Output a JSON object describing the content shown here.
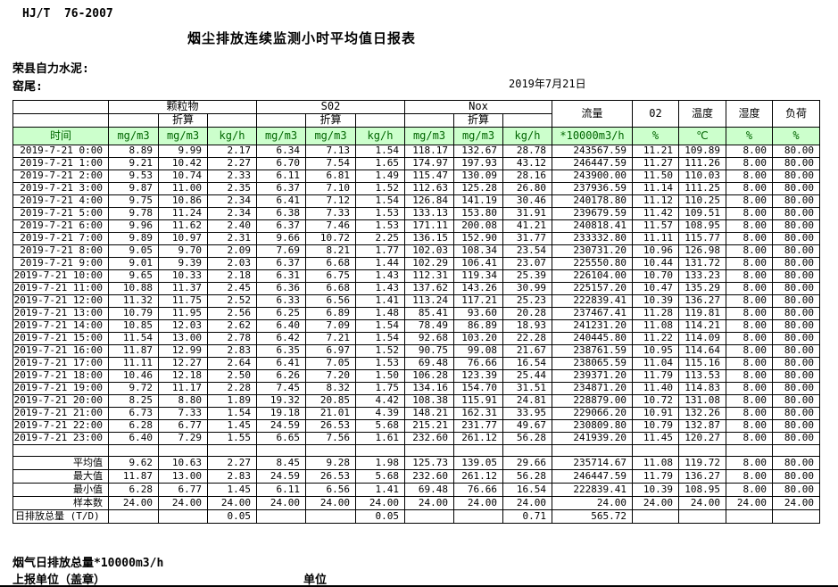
{
  "doc": {
    "standard": "HJ/T  76-2007",
    "title": "烟尘排放连续监测小时平均值日报表",
    "company": "荣县自力水泥:",
    "point": "窑尾:",
    "date": "2019年7月21日"
  },
  "table": {
    "groups": {
      "pm": "颗粒物",
      "so2": "S02",
      "nox": "Nox",
      "converted": "折算",
      "flow": "流量",
      "o2": "02",
      "temp": "温度",
      "humidity": "湿度",
      "load": "负荷"
    },
    "units": {
      "time_label": "时间",
      "mg": "mg/m3",
      "kg": "kg/h",
      "flow": "*10000m3/h",
      "percent": "%",
      "celsius": "℃"
    },
    "rows": [
      [
        "2019-7-21  0:00",
        "8.89",
        "9.99",
        "2.17",
        "6.34",
        "7.13",
        "1.54",
        "118.17",
        "132.67",
        "28.78",
        "243567.59",
        "11.21",
        "109.89",
        "8.00",
        "80.00"
      ],
      [
        "2019-7-21  1:00",
        "9.21",
        "10.42",
        "2.27",
        "6.70",
        "7.54",
        "1.65",
        "174.97",
        "197.93",
        "43.12",
        "246447.59",
        "11.27",
        "111.26",
        "8.00",
        "80.00"
      ],
      [
        "2019-7-21  2:00",
        "9.53",
        "10.74",
        "2.33",
        "6.11",
        "6.81",
        "1.49",
        "115.47",
        "130.09",
        "28.16",
        "243900.00",
        "11.50",
        "110.03",
        "8.00",
        "80.00"
      ],
      [
        "2019-7-21  3:00",
        "9.87",
        "11.00",
        "2.35",
        "6.37",
        "7.10",
        "1.52",
        "112.63",
        "125.28",
        "26.80",
        "237936.59",
        "11.14",
        "111.25",
        "8.00",
        "80.00"
      ],
      [
        "2019-7-21  4:00",
        "9.75",
        "10.86",
        "2.34",
        "6.41",
        "7.12",
        "1.54",
        "126.84",
        "141.19",
        "30.46",
        "240178.80",
        "11.12",
        "110.25",
        "8.00",
        "80.00"
      ],
      [
        "2019-7-21  5:00",
        "9.78",
        "11.24",
        "2.34",
        "6.38",
        "7.33",
        "1.53",
        "133.13",
        "153.80",
        "31.91",
        "239679.59",
        "11.42",
        "109.51",
        "8.00",
        "80.00"
      ],
      [
        "2019-7-21  6:00",
        "9.96",
        "11.62",
        "2.40",
        "6.37",
        "7.46",
        "1.53",
        "171.11",
        "200.08",
        "41.21",
        "240818.41",
        "11.57",
        "108.95",
        "8.00",
        "80.00"
      ],
      [
        "2019-7-21  7:00",
        "9.89",
        "10.97",
        "2.31",
        "9.66",
        "10.72",
        "2.25",
        "136.15",
        "152.90",
        "31.77",
        "233332.80",
        "11.11",
        "115.77",
        "8.00",
        "80.00"
      ],
      [
        "2019-7-21  8:00",
        "9.05",
        "9.70",
        "2.09",
        "7.69",
        "8.21",
        "1.77",
        "102.03",
        "108.34",
        "23.54",
        "230731.20",
        "10.96",
        "126.98",
        "8.00",
        "80.00"
      ],
      [
        "2019-7-21  9:00",
        "9.01",
        "9.39",
        "2.03",
        "6.37",
        "6.68",
        "1.44",
        "102.29",
        "106.41",
        "23.07",
        "225550.80",
        "10.44",
        "131.72",
        "8.00",
        "80.00"
      ],
      [
        "2019-7-21 10:00",
        "9.65",
        "10.33",
        "2.18",
        "6.31",
        "6.75",
        "1.43",
        "112.31",
        "119.34",
        "25.39",
        "226104.00",
        "10.70",
        "133.23",
        "8.00",
        "80.00"
      ],
      [
        "2019-7-21 11:00",
        "10.88",
        "11.37",
        "2.45",
        "6.36",
        "6.68",
        "1.43",
        "137.62",
        "143.26",
        "30.99",
        "225157.20",
        "10.47",
        "135.29",
        "8.00",
        "80.00"
      ],
      [
        "2019-7-21 12:00",
        "11.32",
        "11.75",
        "2.52",
        "6.33",
        "6.56",
        "1.41",
        "113.24",
        "117.21",
        "25.23",
        "222839.41",
        "10.39",
        "136.27",
        "8.00",
        "80.00"
      ],
      [
        "2019-7-21 13:00",
        "10.79",
        "11.95",
        "2.56",
        "6.25",
        "6.89",
        "1.48",
        "85.41",
        "93.60",
        "20.28",
        "237467.41",
        "11.28",
        "119.81",
        "8.00",
        "80.00"
      ],
      [
        "2019-7-21 14:00",
        "10.85",
        "12.03",
        "2.62",
        "6.40",
        "7.09",
        "1.54",
        "78.49",
        "86.89",
        "18.93",
        "241231.20",
        "11.08",
        "114.21",
        "8.00",
        "80.00"
      ],
      [
        "2019-7-21 15:00",
        "11.54",
        "13.00",
        "2.78",
        "6.42",
        "7.21",
        "1.54",
        "92.68",
        "103.20",
        "22.28",
        "240445.80",
        "11.22",
        "114.09",
        "8.00",
        "80.00"
      ],
      [
        "2019-7-21 16:00",
        "11.87",
        "12.99",
        "2.83",
        "6.35",
        "6.97",
        "1.52",
        "90.75",
        "99.08",
        "21.67",
        "238761.59",
        "10.95",
        "114.64",
        "8.00",
        "80.00"
      ],
      [
        "2019-7-21 17:00",
        "11.11",
        "12.27",
        "2.64",
        "6.41",
        "7.05",
        "1.53",
        "69.48",
        "76.66",
        "16.54",
        "238065.59",
        "11.04",
        "115.16",
        "8.00",
        "80.00"
      ],
      [
        "2019-7-21 18:00",
        "10.46",
        "12.18",
        "2.50",
        "6.26",
        "7.20",
        "1.50",
        "106.28",
        "123.39",
        "25.44",
        "239371.20",
        "11.79",
        "113.53",
        "8.00",
        "80.00"
      ],
      [
        "2019-7-21 19:00",
        "9.72",
        "11.17",
        "2.28",
        "7.45",
        "8.32",
        "1.75",
        "134.16",
        "154.70",
        "31.51",
        "234871.20",
        "11.40",
        "114.83",
        "8.00",
        "80.00"
      ],
      [
        "2019-7-21 20:00",
        "8.25",
        "8.80",
        "1.89",
        "19.32",
        "20.85",
        "4.42",
        "108.38",
        "115.91",
        "24.81",
        "228879.00",
        "10.72",
        "131.08",
        "8.00",
        "80.00"
      ],
      [
        "2019-7-21 21:00",
        "6.73",
        "7.33",
        "1.54",
        "19.18",
        "21.01",
        "4.39",
        "148.21",
        "162.31",
        "33.95",
        "229066.20",
        "10.91",
        "132.26",
        "8.00",
        "80.00"
      ],
      [
        "2019-7-21 22:00",
        "6.28",
        "6.77",
        "1.45",
        "24.59",
        "26.53",
        "5.68",
        "215.21",
        "231.77",
        "49.67",
        "230809.80",
        "10.79",
        "132.87",
        "8.00",
        "80.00"
      ],
      [
        "2019-7-21 23:00",
        "6.40",
        "7.29",
        "1.55",
        "6.65",
        "7.56",
        "1.61",
        "232.60",
        "261.12",
        "56.28",
        "241939.20",
        "11.45",
        "120.27",
        "8.00",
        "80.00"
      ]
    ],
    "summary": [
      {
        "label": "平均值",
        "values": [
          "9.62",
          "10.63",
          "2.27",
          "8.45",
          "9.28",
          "1.98",
          "125.73",
          "139.05",
          "29.66",
          "235714.67",
          "11.08",
          "119.72",
          "8.00",
          "80.00"
        ]
      },
      {
        "label": "最大值",
        "values": [
          "11.87",
          "13.00",
          "2.83",
          "24.59",
          "26.53",
          "5.68",
          "232.60",
          "261.12",
          "56.28",
          "246447.59",
          "11.79",
          "136.27",
          "8.00",
          "80.00"
        ]
      },
      {
        "label": "最小值",
        "values": [
          "6.28",
          "6.77",
          "1.45",
          "6.11",
          "6.56",
          "1.41",
          "69.48",
          "76.66",
          "16.54",
          "222839.41",
          "10.39",
          "108.95",
          "8.00",
          "80.00"
        ]
      },
      {
        "label": "样本数",
        "values": [
          "24.00",
          "24.00",
          "24.00",
          "24.00",
          "24.00",
          "24.00",
          "24.00",
          "24.00",
          "24.00",
          "24.00",
          "24.00",
          "24.00",
          "24.00",
          "24.00"
        ]
      },
      {
        "label": "日排放总量 (T/D)",
        "align": "left",
        "values": [
          "",
          "",
          "0.05",
          "",
          "",
          "0.05",
          "",
          "",
          "0.71",
          "565.72",
          "",
          "",
          "",
          ""
        ]
      }
    ]
  },
  "footer": {
    "flow_note": "烟气日排放总量*10000m3/h",
    "report_unit": "上报单位（盖章）",
    "unit": "单位"
  },
  "colors": {
    "header_bg": "#ccffcc",
    "header_text": "#006600"
  }
}
